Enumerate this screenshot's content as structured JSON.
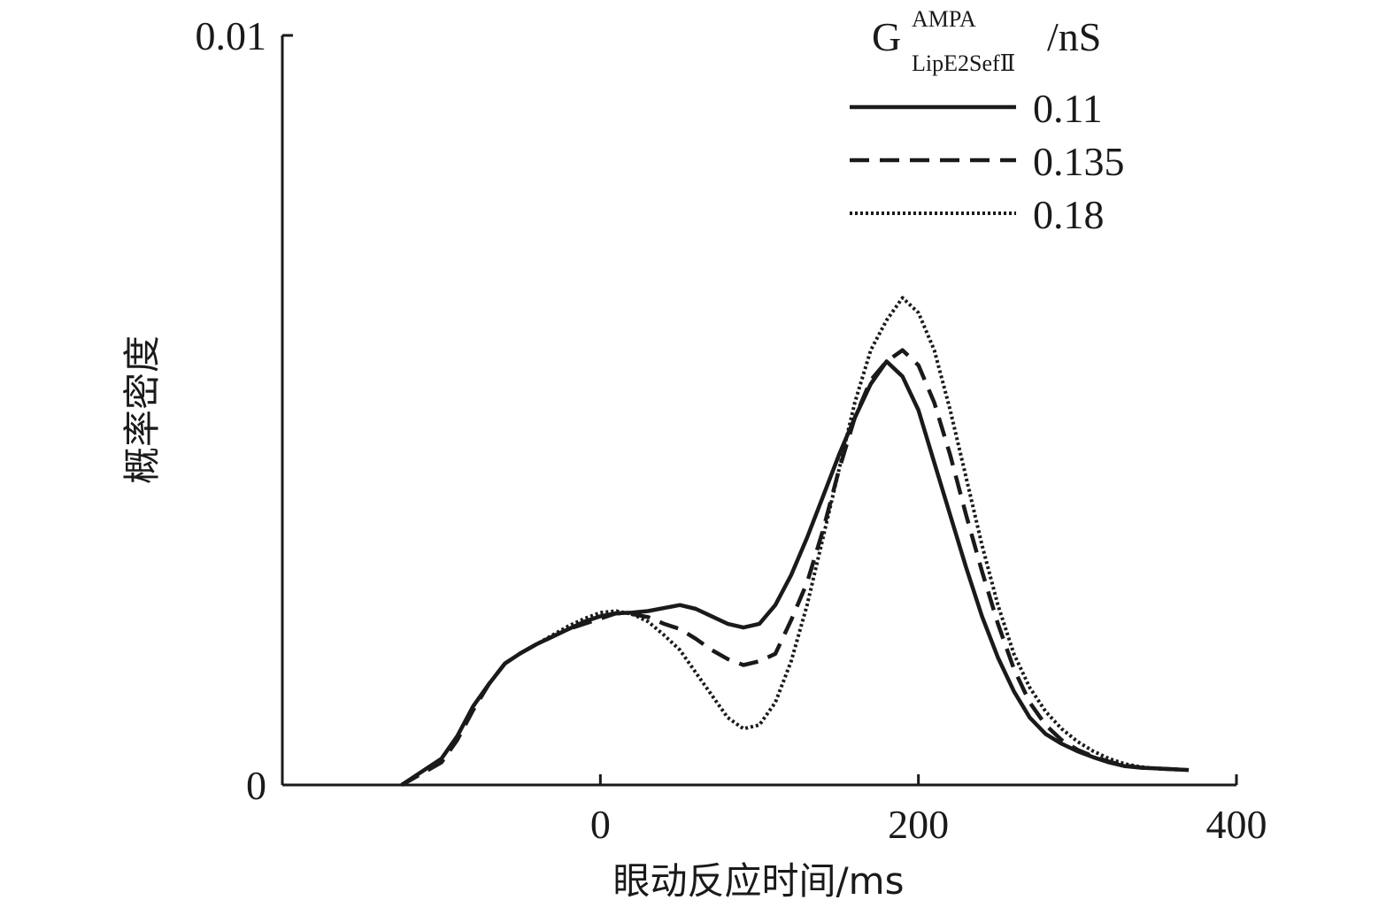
{
  "chart_data": {
    "type": "line",
    "xlabel": "眼动反应时间/ms",
    "ylabel": "概率密度",
    "xlim": [
      -200,
      400
    ],
    "ylim": [
      0,
      0.01
    ],
    "x_ticks": [
      0,
      200,
      400
    ],
    "x_tick_labels": [
      "0",
      "200",
      "400"
    ],
    "y_ticks": [
      0,
      0.01
    ],
    "y_tick_labels": [
      "0",
      "0.01"
    ],
    "legend": {
      "title_main": "G",
      "title_sup": "AMPA",
      "title_sub": "LipE2SefⅡ",
      "title_unit": "/nS",
      "position": "top-right"
    },
    "series": [
      {
        "name": "0.11",
        "style": "solid",
        "x": [
          -125,
          -100,
          -90,
          -80,
          -70,
          -60,
          -50,
          -40,
          -30,
          -20,
          -10,
          0,
          10,
          20,
          30,
          40,
          50,
          60,
          70,
          80,
          90,
          100,
          110,
          120,
          130,
          140,
          150,
          160,
          170,
          180,
          190,
          200,
          210,
          220,
          230,
          240,
          250,
          260,
          270,
          280,
          290,
          300,
          310,
          320,
          330,
          340,
          350,
          360,
          370
        ],
        "y": [
          0.0,
          0.00035,
          0.00065,
          0.00105,
          0.00135,
          0.00162,
          0.00176,
          0.00188,
          0.00198,
          0.00208,
          0.00218,
          0.00225,
          0.00229,
          0.0023,
          0.00232,
          0.00236,
          0.0024,
          0.00235,
          0.00225,
          0.00215,
          0.0021,
          0.00215,
          0.0024,
          0.0028,
          0.0033,
          0.00385,
          0.0044,
          0.0049,
          0.00535,
          0.00565,
          0.00545,
          0.005,
          0.0043,
          0.0036,
          0.0029,
          0.00225,
          0.0017,
          0.00125,
          0.0009,
          0.00068,
          0.00055,
          0.00045,
          0.00037,
          0.0003,
          0.00025,
          0.00023,
          0.00022,
          0.00021,
          0.0002
        ]
      },
      {
        "name": "0.135",
        "style": "dashed",
        "x": [
          -125,
          -100,
          -90,
          -80,
          -70,
          -60,
          -50,
          -40,
          -30,
          -20,
          -10,
          0,
          10,
          20,
          30,
          40,
          50,
          60,
          70,
          80,
          90,
          100,
          110,
          120,
          130,
          140,
          150,
          160,
          170,
          180,
          190,
          200,
          210,
          220,
          230,
          240,
          250,
          260,
          270,
          280,
          290,
          300,
          310,
          320,
          330,
          340,
          350,
          360,
          370
        ],
        "y": [
          0.0,
          0.0003,
          0.0006,
          0.001,
          0.00135,
          0.00162,
          0.00176,
          0.00188,
          0.00198,
          0.00208,
          0.00215,
          0.00222,
          0.00229,
          0.00228,
          0.00224,
          0.00215,
          0.00208,
          0.00195,
          0.0018,
          0.00168,
          0.0016,
          0.00165,
          0.00175,
          0.0022,
          0.0027,
          0.0034,
          0.0042,
          0.0049,
          0.0054,
          0.00565,
          0.0058,
          0.0056,
          0.0051,
          0.0044,
          0.0036,
          0.00285,
          0.00215,
          0.00155,
          0.0011,
          0.0008,
          0.0006,
          0.00047,
          0.00038,
          0.00031,
          0.00026,
          0.00023,
          0.00022,
          0.00021,
          0.0002
        ]
      },
      {
        "name": "0.18",
        "style": "dotted",
        "x": [
          -125,
          -100,
          -90,
          -80,
          -70,
          -60,
          -50,
          -40,
          -30,
          -20,
          -10,
          0,
          10,
          20,
          30,
          40,
          50,
          60,
          70,
          80,
          90,
          100,
          110,
          120,
          130,
          140,
          150,
          160,
          170,
          180,
          190,
          200,
          210,
          220,
          230,
          240,
          250,
          260,
          270,
          280,
          290,
          300,
          310,
          320,
          330,
          340,
          350,
          360,
          370
        ],
        "y": [
          0.0,
          0.00035,
          0.00065,
          0.00105,
          0.00135,
          0.00162,
          0.00176,
          0.00188,
          0.002,
          0.00212,
          0.00222,
          0.0023,
          0.00232,
          0.00228,
          0.00218,
          0.002,
          0.0018,
          0.0015,
          0.0012,
          0.0009,
          0.00075,
          0.0008,
          0.0011,
          0.00165,
          0.0024,
          0.0033,
          0.0042,
          0.0051,
          0.0058,
          0.0062,
          0.0065,
          0.0063,
          0.0058,
          0.005,
          0.0041,
          0.0032,
          0.0024,
          0.00175,
          0.0013,
          0.00098,
          0.00075,
          0.00058,
          0.00045,
          0.00035,
          0.00028,
          0.00024,
          0.00022,
          0.00021,
          0.0002
        ]
      }
    ]
  }
}
